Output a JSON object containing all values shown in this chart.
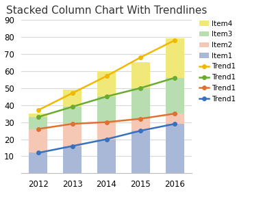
{
  "title": "Stacked Column Chart With Trendlines",
  "years": [
    2012,
    2013,
    2014,
    2015,
    2016
  ],
  "item1": [
    12,
    16,
    20,
    25,
    29
  ],
  "item2": [
    14,
    13,
    10,
    7,
    6
  ],
  "item3": [
    7,
    10,
    15,
    18,
    21
  ],
  "item4": [
    2,
    10,
    15,
    15,
    23
  ],
  "trend_yellow": [
    37,
    47,
    57,
    68,
    78
  ],
  "trend_green": [
    33,
    39,
    45,
    50,
    56
  ],
  "trend_orange": [
    26,
    29,
    30,
    32,
    35
  ],
  "trend_blue": [
    12,
    16,
    20,
    25,
    29
  ],
  "color_item1": "#aab8d8",
  "color_item2": "#f5c8b5",
  "color_item3": "#b8ddb0",
  "color_item4": "#f0e878",
  "color_trend_yellow": "#f0b800",
  "color_trend_green": "#6aaa30",
  "color_trend_orange": "#e07030",
  "color_trend_blue": "#3870c0",
  "ylim": [
    0,
    90
  ],
  "yticks": [
    10,
    20,
    30,
    40,
    50,
    60,
    70,
    80,
    90
  ],
  "bar_width": 0.55,
  "bg_color": "#ffffff",
  "grid_color": "#d8d8d8",
  "title_fontsize": 11,
  "tick_fontsize": 8.5,
  "legend_fontsize": 7.5
}
